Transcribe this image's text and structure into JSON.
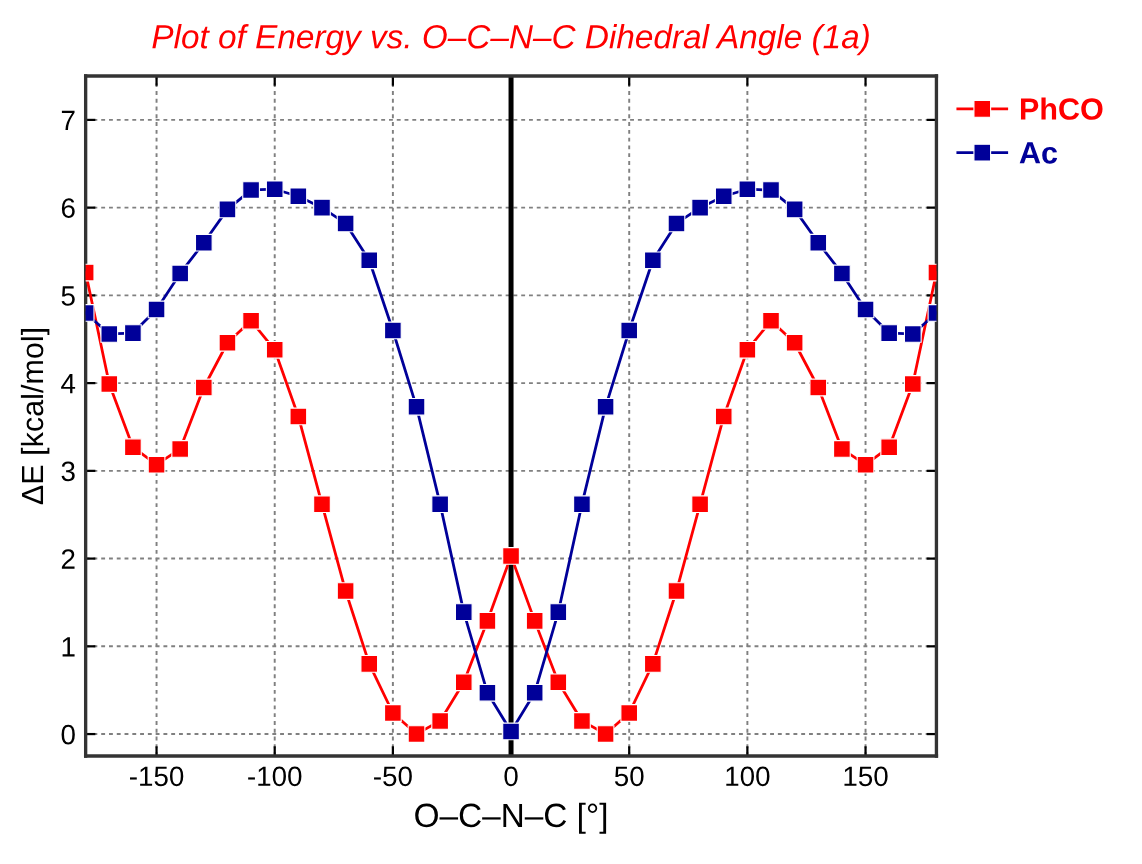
{
  "chart_data": {
    "type": "line",
    "title": "Plot of Energy vs. O–C–N–C Dihedral Angle (1a)",
    "xlabel": "O–C–N–C [°]",
    "ylabel": "ΔE [kcal/mol]",
    "x": [
      -180,
      -170,
      -160,
      -150,
      -140,
      -130,
      -120,
      -110,
      -100,
      -90,
      -80,
      -70,
      -60,
      -50,
      -40,
      -30,
      -20,
      -10,
      0,
      10,
      20,
      30,
      40,
      50,
      60,
      70,
      80,
      90,
      100,
      110,
      120,
      130,
      140,
      150,
      160,
      170,
      180
    ],
    "series": [
      {
        "name": "PhCO",
        "color": "#ff0000",
        "values": [
          5.26,
          3.99,
          3.27,
          3.07,
          3.25,
          3.95,
          4.46,
          4.71,
          4.38,
          3.62,
          2.62,
          1.63,
          0.8,
          0.24,
          0,
          0.15,
          0.59,
          1.29,
          2.03,
          1.29,
          0.59,
          0.15,
          0,
          0.24,
          0.8,
          1.63,
          2.62,
          3.62,
          4.38,
          4.71,
          4.46,
          3.95,
          3.25,
          3.07,
          3.27,
          3.99,
          5.26
        ]
      },
      {
        "name": "Ac",
        "color": "#000099",
        "values": [
          4.8,
          4.56,
          4.57,
          4.84,
          5.25,
          5.6,
          5.98,
          6.2,
          6.21,
          6.13,
          6.0,
          5.82,
          5.4,
          4.6,
          3.73,
          2.62,
          1.39,
          0.47,
          0.03,
          0.47,
          1.39,
          2.62,
          3.73,
          4.6,
          5.4,
          5.82,
          6.0,
          6.13,
          6.21,
          6.2,
          5.98,
          5.6,
          5.25,
          4.84,
          4.57,
          4.56,
          4.8
        ]
      }
    ],
    "xlim": [
      -180,
      180
    ],
    "ylim": [
      -0.25,
      7.5
    ],
    "xticks": [
      -150,
      -100,
      -50,
      0,
      50,
      100,
      150
    ],
    "yticks": [
      0,
      1,
      2,
      3,
      4,
      5,
      6,
      7
    ],
    "ref_lines": [
      {
        "axis": "x",
        "value": 0,
        "label": null,
        "color": "#000000",
        "line_style": "solid"
      }
    ],
    "grid": true,
    "legend": "top right",
    "marker": "square",
    "line_style": "solid"
  }
}
